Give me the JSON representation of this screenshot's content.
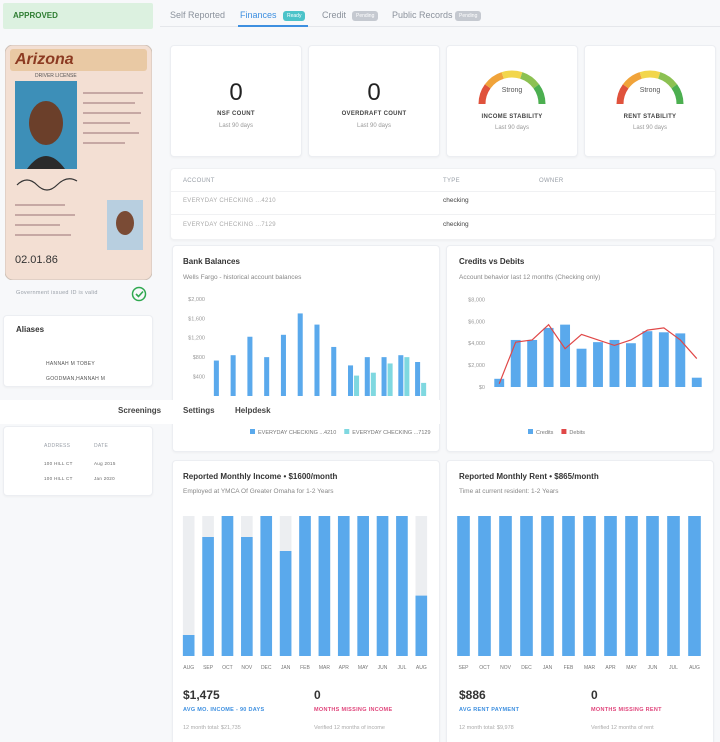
{
  "sidebar": {
    "status": "APPROVED",
    "id_card": {
      "state": "Arizona",
      "kind": "DRIVER LICENSE",
      "dob": "02.01.86"
    },
    "id_status": "Government issued ID is valid",
    "aliases": {
      "title": "Aliases",
      "names": [
        "HANNAH M TOBEY",
        "GOODMAN,HANNAH M"
      ]
    },
    "addresses": {
      "headers": [
        "ADDRESS",
        "DATE"
      ],
      "rows": [
        [
          "100 HILL CT",
          "Aug 2015"
        ],
        [
          "100 HILL CT",
          "Jan 2020"
        ]
      ]
    }
  },
  "nav": [
    "Screenings",
    "Settings",
    "Helpdesk"
  ],
  "tabs": [
    {
      "label": "Self Reported"
    },
    {
      "label": "Finances",
      "badge": "Ready"
    },
    {
      "label": "Credit",
      "badge": "Pending"
    },
    {
      "label": "Public Records",
      "badge": "Pending"
    }
  ],
  "stats": [
    {
      "value": 0,
      "label": "NSF COUNT",
      "period": "Last 90 days"
    },
    {
      "value": 0,
      "label": "OVERDRAFT COUNT",
      "period": "Last 90 days"
    },
    {
      "rating": "Strong",
      "label": "INCOME STABILITY",
      "period": "Last 90 days"
    },
    {
      "rating": "Strong",
      "label": "RENT STABILITY",
      "period": "Last 90 days"
    }
  ],
  "accounts": {
    "headers": [
      "ACCOUNT",
      "TYPE",
      "OWNER"
    ],
    "rows": [
      [
        "EVERYDAY CHECKING ...4210",
        "checking"
      ],
      [
        "EVERYDAY CHECKING ...7129",
        "checking"
      ]
    ]
  },
  "charts": [
    {
      "type": "bar",
      "title": "Bank Balances",
      "subtitle": "Wells Fargo - historical account balances",
      "categories": [
        null,
        null,
        null,
        null,
        null,
        null,
        null,
        null,
        null,
        null,
        null,
        null,
        null
      ],
      "series": [
        {
          "name": "EVERYDAY CHECKING ...4210",
          "color": "#5aa9ec",
          "values": [
            730,
            840,
            1220,
            800,
            1260,
            1700,
            1470,
            1010,
            630,
            800,
            800,
            840,
            700
          ]
        },
        {
          "name": "EVERYDAY CHECKING ...7129",
          "color": "#7fd8e0",
          "values": [
            null,
            null,
            null,
            null,
            null,
            null,
            null,
            null,
            420,
            480,
            670,
            800,
            270
          ]
        }
      ],
      "ylim": [
        0,
        2100
      ],
      "yticks": [
        {
          "value": 2000,
          "label": "$2,000"
        },
        {
          "value": 1600,
          "label": "$1,600"
        },
        {
          "value": 1200,
          "label": "$1,200"
        },
        {
          "value": 800,
          "label": "$800"
        },
        {
          "value": 400,
          "label": "$400"
        }
      ]
    },
    {
      "type": "bar",
      "title": "Credits vs Debits",
      "subtitle": "Account behavior last 12 months (Checking only)",
      "categories": [
        null,
        null,
        null,
        null,
        null,
        null,
        null,
        null,
        null,
        null,
        null,
        null,
        null
      ],
      "series": [
        {
          "name": "Credits",
          "color": "#5aa9ec",
          "values": [
            750,
            4300,
            4300,
            5400,
            5700,
            3500,
            4100,
            4300,
            4000,
            5100,
            5000,
            4900,
            850
          ]
        },
        {
          "name": "Debits",
          "color": "#e04848",
          "type": "line",
          "values": [
            300,
            4100,
            4300,
            5700,
            3500,
            4800,
            4300,
            3800,
            4300,
            5200,
            5400,
            4300,
            2600
          ]
        }
      ],
      "ylim": [
        0,
        8500
      ],
      "yticks": [
        {
          "value": 8000,
          "label": "$8,000"
        },
        {
          "value": 6000,
          "label": "$6,000"
        },
        {
          "value": 4000,
          "label": "$4,000"
        },
        {
          "value": 2000,
          "label": "$2,000"
        },
        {
          "value": 0,
          "label": "$0"
        }
      ]
    },
    {
      "type": "bar",
      "title": "Reported Monthly Income • $1600/month",
      "subtitle": "Employed at YMCA Of Greater Omaha for 1-2 Years",
      "categories": [
        "AUG",
        "SEP",
        "OCT",
        "NOV",
        "DEC",
        "JAN",
        "FEB",
        "MAR",
        "APR",
        "MAY",
        "JUN",
        "JUL",
        "AUG"
      ],
      "series": [
        {
          "name": "Income",
          "color": "#5aa9ec",
          "values": [
            240,
            1360,
            1600,
            1360,
            1600,
            1200,
            1600,
            1600,
            1600,
            1600,
            1600,
            1600,
            690
          ]
        }
      ],
      "ylim": [
        0,
        1600
      ],
      "track_color": "#eceef1"
    },
    {
      "type": "bar",
      "title": "Reported Monthly Rent • $865/month",
      "subtitle": "Time at current resident: 1-2 Years",
      "categories": [
        "SEP",
        "OCT",
        "NOV",
        "DEC",
        "JAN",
        "FEB",
        "MAR",
        "APR",
        "MAY",
        "JUN",
        "JUL",
        "AUG"
      ],
      "series": [
        {
          "name": "Rent",
          "color": "#5aa9ec",
          "values": [
            865,
            865,
            865,
            865,
            865,
            865,
            865,
            865,
            865,
            865,
            865,
            865
          ]
        }
      ],
      "ylim": [
        0,
        865
      ],
      "track_color": "#eceef1"
    }
  ],
  "income_summary": {
    "value": "$1,475",
    "label": "AVG MO. INCOME - 90 DAYS",
    "note": "12 month total: $21,735",
    "missing": 0,
    "missing_label": "MONTHS MISSING INCOME",
    "missing_note": "Verified 12 months of income"
  },
  "rent_summary": {
    "value": "$886",
    "label": "AVG RENT PAYMENT",
    "note": "12 month total: $9,978",
    "missing": 0,
    "missing_label": "MONTHS MISSING RENT",
    "missing_note": "Verified 12 months of rent"
  }
}
